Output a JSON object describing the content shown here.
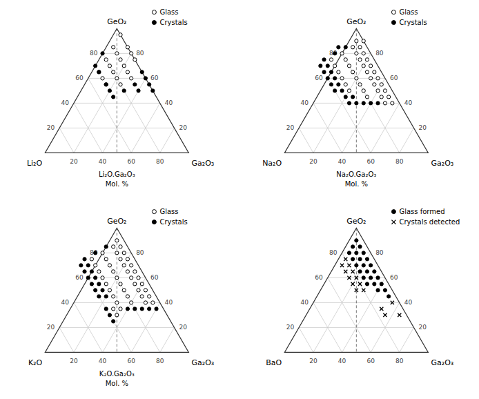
{
  "chart_data": [
    {
      "type": "ternary",
      "corner_labels": [
        "Li₂O",
        "Ga₂O₃",
        "GeO₂"
      ],
      "xlabel": "Li₂O.Ga₂O₃\nMol. %",
      "xlim": [
        0,
        100
      ],
      "ylim": [
        0,
        100
      ],
      "xticks": [
        20,
        40,
        60,
        80
      ],
      "yticks": [
        20,
        40,
        60,
        80
      ],
      "grid": true,
      "legend": "upper-right",
      "series": [
        {
          "name": "Glass",
          "marker": "open-circle",
          "x": [
            0,
            10,
            0,
            10,
            0,
            10,
            20,
            0,
            10,
            20,
            10,
            20,
            30,
            10,
            20,
            30,
            20,
            30
          ],
          "values": [
            95,
            85,
            85,
            80,
            80,
            75,
            75,
            75,
            70,
            70,
            65,
            65,
            65,
            60,
            60,
            60,
            55,
            55
          ]
        },
        {
          "name": "Crystals",
          "marker": "filled-circle",
          "x": [
            20,
            30,
            0,
            30,
            0,
            0,
            30,
            10,
            0,
            10,
            30,
            20,
            30
          ],
          "values": [
            80,
            70,
            65,
            65,
            60,
            55,
            55,
            55,
            50,
            50,
            50,
            50,
            45
          ]
        }
      ]
    },
    {
      "type": "ternary",
      "corner_labels": [
        "Na₂O",
        "Ga₂O₃",
        "GeO₂"
      ],
      "xlabel": "Na₂O.Ga₂O₃\nMol. %",
      "xlim": [
        0,
        100
      ],
      "ylim": [
        0,
        100
      ],
      "xticks": [
        20,
        40,
        60,
        80
      ],
      "yticks": [
        20,
        40,
        60,
        80
      ],
      "grid": true,
      "legend": "upper-right",
      "series": [
        {
          "name": "Glass",
          "marker": "open-circle",
          "x": [
            5,
            0,
            5,
            10,
            5,
            10,
            20,
            5,
            10,
            20,
            30,
            5,
            10,
            20,
            30,
            5,
            10,
            20,
            30,
            5,
            10,
            20,
            30,
            5,
            10,
            20,
            30,
            5,
            10,
            20,
            30,
            5,
            10,
            20,
            5,
            10
          ],
          "values": [
            90,
            90,
            85,
            85,
            80,
            80,
            80,
            75,
            75,
            75,
            75,
            70,
            70,
            70,
            70,
            65,
            65,
            65,
            65,
            60,
            60,
            60,
            60,
            55,
            55,
            55,
            55,
            50,
            50,
            50,
            50,
            45,
            45,
            45,
            40,
            40
          ]
        },
        {
          "name": "Crystals",
          "marker": "filled-circle",
          "x": [
            15,
            20,
            25,
            35,
            35,
            40,
            35,
            40,
            35,
            40,
            35,
            40,
            35,
            40,
            30,
            35,
            15,
            20,
            25,
            30,
            35
          ],
          "values": [
            85,
            85,
            80,
            75,
            70,
            70,
            65,
            65,
            60,
            60,
            55,
            55,
            50,
            50,
            45,
            45,
            40,
            40,
            40,
            40,
            40
          ]
        }
      ]
    },
    {
      "type": "ternary",
      "corner_labels": [
        "K₂O",
        "Ga₂O₃",
        "GeO₂"
      ],
      "xlabel": "K₂O.Ga₂O₃\nMol. %",
      "xlim": [
        0,
        100
      ],
      "ylim": [
        0,
        100
      ],
      "xticks": [
        20,
        40,
        60,
        80
      ],
      "yticks": [
        20,
        40,
        60,
        80
      ],
      "grid": true,
      "legend": "upper-right",
      "series": [
        {
          "name": "Glass",
          "marker": "open-circle",
          "x": [
            5,
            5,
            10,
            5,
            10,
            20,
            5,
            10,
            20,
            30,
            5,
            10,
            20,
            30,
            5,
            10,
            20,
            30,
            5,
            10,
            20,
            30,
            5,
            10,
            20,
            30,
            5,
            10,
            20,
            30,
            5,
            10,
            20,
            30,
            5,
            10,
            20,
            30,
            30,
            35,
            35
          ],
          "values": [
            90,
            85,
            85,
            80,
            80,
            80,
            75,
            75,
            75,
            75,
            70,
            70,
            70,
            70,
            65,
            65,
            65,
            65,
            60,
            60,
            60,
            60,
            55,
            55,
            55,
            55,
            50,
            50,
            50,
            50,
            45,
            45,
            45,
            45,
            40,
            40,
            40,
            40,
            35,
            35,
            30
          ]
        },
        {
          "name": "Crystals",
          "marker": "filled-circle",
          "x": [
            15,
            25,
            35,
            35,
            40,
            35,
            40,
            35,
            40,
            35,
            40,
            35,
            40,
            35,
            40,
            5,
            10,
            15,
            20,
            25,
            40,
            40,
            40
          ],
          "values": [
            85,
            80,
            75,
            70,
            70,
            65,
            65,
            60,
            60,
            55,
            55,
            50,
            50,
            45,
            45,
            35,
            35,
            35,
            35,
            35,
            35,
            30,
            25
          ]
        }
      ]
    },
    {
      "type": "ternary",
      "corner_labels": [
        "BaO",
        "Ga₂O₃",
        "GeO₂"
      ],
      "xlim": [
        0,
        100
      ],
      "ylim": [
        0,
        100
      ],
      "xticks": [
        20,
        40,
        60,
        80
      ],
      "yticks": [
        20,
        40,
        60,
        80
      ],
      "grid": true,
      "legend": "upper-right",
      "series": [
        {
          "name": "Glass formed",
          "marker": "filled-circle",
          "x": [
            5,
            5,
            10,
            5,
            10,
            15,
            5,
            10,
            15,
            5,
            10,
            15,
            5,
            10,
            15,
            5,
            10,
            15,
            5,
            10,
            15,
            5,
            10,
            5
          ],
          "values": [
            90,
            85,
            85,
            80,
            80,
            80,
            75,
            75,
            75,
            70,
            70,
            70,
            65,
            65,
            65,
            60,
            60,
            60,
            55,
            55,
            55,
            50,
            50,
            45
          ]
        },
        {
          "name": "Crystals detected",
          "marker": "x",
          "x": [
            20,
            20,
            25,
            20,
            25,
            20,
            25,
            20,
            25,
            20,
            25,
            5,
            15,
            5,
            15
          ],
          "values": [
            75,
            70,
            70,
            65,
            65,
            60,
            60,
            55,
            55,
            50,
            50,
            40,
            35,
            30,
            30
          ]
        }
      ]
    }
  ]
}
